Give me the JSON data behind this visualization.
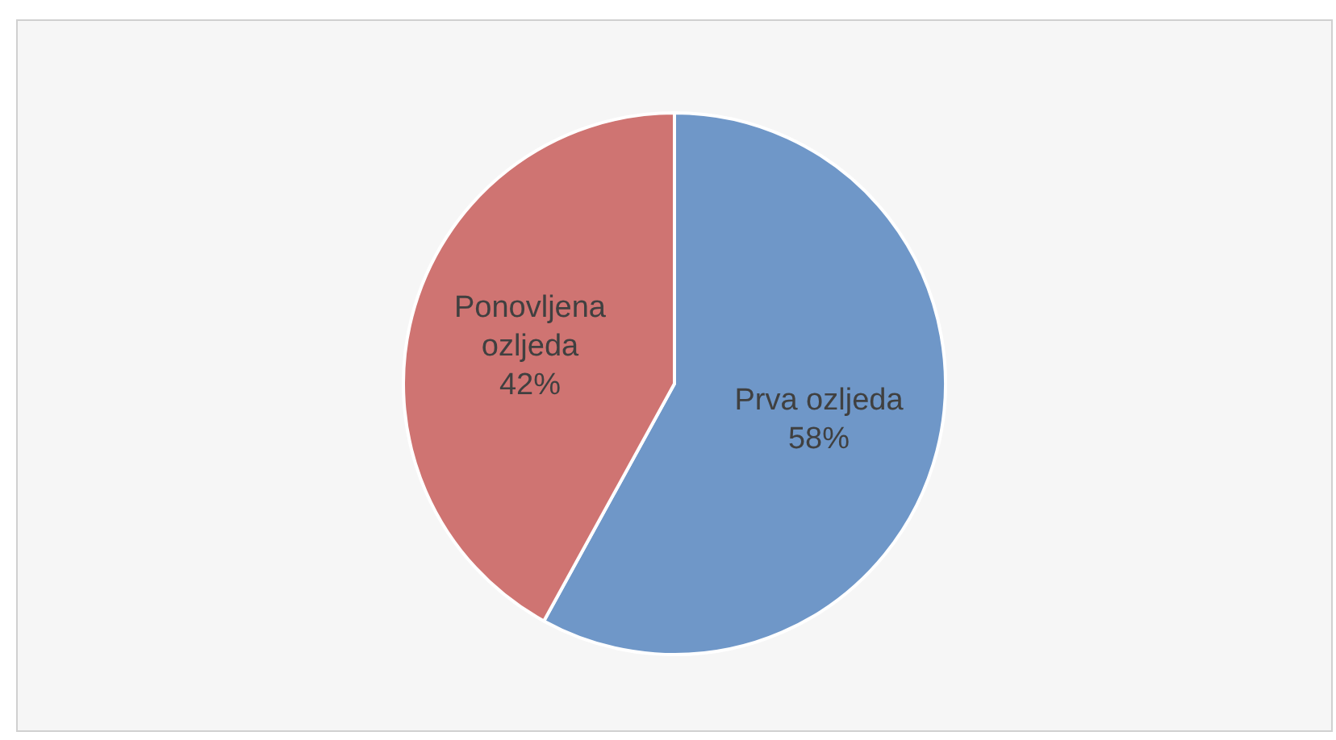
{
  "chart_data": {
    "type": "pie",
    "categories": [
      "Prva ozljeda",
      "Ponovljena ozljeda"
    ],
    "values": [
      58,
      42
    ],
    "colors": [
      "#6f97c8",
      "#cf7472"
    ],
    "data_labels": true,
    "value_labels": [
      "58%",
      "42%"
    ],
    "legend": false
  }
}
